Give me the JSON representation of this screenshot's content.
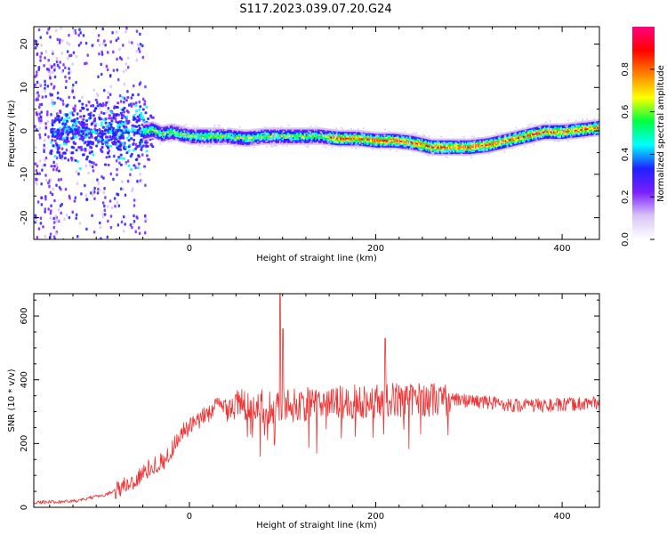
{
  "figure": {
    "title": "S117.2023.039.07.20.G24"
  },
  "chart_data": [
    {
      "type": "heatmap",
      "xlabel": "Height of straight line (km)",
      "ylabel": "Frequency (Hz)",
      "xlim": [
        -167,
        440
      ],
      "ylim": [
        -25,
        24
      ],
      "xticks": [
        0,
        200,
        400
      ],
      "yticks": [
        -20,
        -10,
        0,
        10,
        20
      ],
      "colorbar": {
        "label": "Normalized spectral amplitude",
        "ticks": [
          "0.0",
          "0.2",
          "0.4",
          "0.6",
          "0.8"
        ],
        "range": [
          0,
          1
        ],
        "colormap": [
          "#ffffff",
          "#d9c4f7",
          "#7b1fff",
          "#2020ff",
          "#00ffff",
          "#00ff40",
          "#ffff00",
          "#ff8000",
          "#ff0000",
          "#ff0080"
        ]
      },
      "ridge": {
        "x": [
          -50,
          -40,
          -30,
          -20,
          0,
          20,
          40,
          60,
          80,
          100,
          120,
          140,
          160,
          180,
          200,
          220,
          240,
          260,
          280,
          300,
          320,
          340,
          360,
          380,
          400,
          420,
          440
        ],
        "frequency": [
          0,
          0.5,
          -0.5,
          0,
          -1,
          -1,
          -1,
          -1.5,
          -1,
          -1,
          -1,
          -1,
          -1.5,
          -1.5,
          -2,
          -2,
          -2.5,
          -3.5,
          -3.5,
          -3.5,
          -3,
          -2,
          -1,
          0,
          0,
          0.5,
          1
        ]
      }
    },
    {
      "type": "line",
      "xlabel": "Height of straight line (km)",
      "ylabel": "SNR (10 * v/v)",
      "xlim": [
        -167,
        440
      ],
      "ylim": [
        0,
        670
      ],
      "xticks": [
        0,
        200,
        400
      ],
      "yticks": [
        0,
        200,
        400,
        600
      ],
      "color": "#ee3333",
      "trend": {
        "x": [
          -167,
          -120,
          -90,
          -60,
          -40,
          -25,
          -10,
          10,
          30,
          50,
          80,
          100,
          150,
          200,
          250,
          300,
          350,
          400,
          440
        ],
        "y": [
          15,
          20,
          40,
          80,
          130,
          150,
          230,
          270,
          320,
          320,
          315,
          320,
          325,
          335,
          340,
          335,
          320,
          320,
          330
        ]
      },
      "peaks": [
        {
          "x": 97,
          "y": 670
        },
        {
          "x": 100,
          "y": 560
        },
        {
          "x": 210,
          "y": 530
        }
      ]
    }
  ]
}
